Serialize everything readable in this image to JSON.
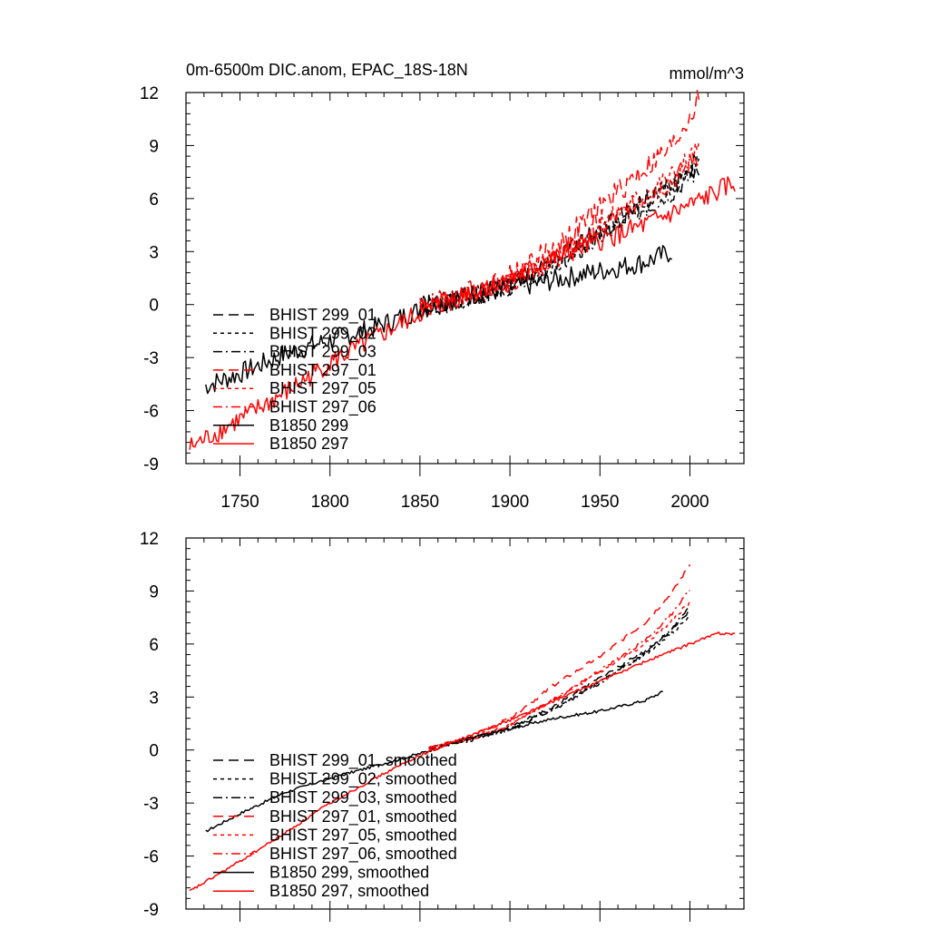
{
  "chart_data": [
    {
      "type": "line",
      "title": "0m-6500m DIC.anom, EPAC_18S-18N",
      "units_label": "mmol/m^3",
      "xlabel": "",
      "ylabel": "",
      "xlim": [
        1720,
        2030
      ],
      "ylim": [
        -9,
        12
      ],
      "xticks": [
        1750,
        1800,
        1850,
        1900,
        1950,
        2000
      ],
      "yticks": [
        -9,
        -6,
        -3,
        0,
        3,
        6,
        9,
        12
      ],
      "xtick_labels": [
        "1750",
        "1800",
        "1850",
        "1900",
        "1950",
        "2000"
      ],
      "ytick_labels": [
        "-9",
        "-6",
        "-3",
        "0",
        "3",
        "6",
        "9",
        "12"
      ],
      "grid": false,
      "legend_position": "lower-left",
      "series": [
        {
          "name": "BHIST 299_01",
          "color": "#000000",
          "dash": "long-dash",
          "noise": 0.6,
          "seed": 1,
          "points": [
            [
              1850,
              -0.1
            ],
            [
              1870,
              0.2
            ],
            [
              1900,
              1.2
            ],
            [
              1930,
              2.8
            ],
            [
              1950,
              4.3
            ],
            [
              1970,
              5.6
            ],
            [
              1990,
              6.8
            ],
            [
              2005,
              8.2
            ]
          ]
        },
        {
          "name": "BHIST 299_02",
          "color": "#000000",
          "dash": "short-dash",
          "noise": 0.6,
          "seed": 2,
          "points": [
            [
              1850,
              -0.1
            ],
            [
              1870,
              0.2
            ],
            [
              1900,
              1.1
            ],
            [
              1930,
              2.6
            ],
            [
              1950,
              4.0
            ],
            [
              1970,
              5.4
            ],
            [
              1990,
              6.7
            ],
            [
              2005,
              8.0
            ]
          ]
        },
        {
          "name": "BHIST 299_03",
          "color": "#000000",
          "dash": "dash-dot",
          "noise": 0.6,
          "seed": 3,
          "points": [
            [
              1850,
              -0.1
            ],
            [
              1870,
              0.2
            ],
            [
              1900,
              1.1
            ],
            [
              1930,
              2.5
            ],
            [
              1950,
              3.8
            ],
            [
              1970,
              5.2
            ],
            [
              1990,
              6.4
            ],
            [
              2005,
              7.7
            ]
          ]
        },
        {
          "name": "BHIST 297_01",
          "color": "#ff0000",
          "dash": "long-dash",
          "noise": 0.7,
          "seed": 4,
          "points": [
            [
              1850,
              -0.1
            ],
            [
              1870,
              0.4
            ],
            [
              1900,
              1.6
            ],
            [
              1930,
              3.6
            ],
            [
              1950,
              5.5
            ],
            [
              1970,
              7.3
            ],
            [
              1990,
              8.9
            ],
            [
              2005,
              11.6
            ]
          ]
        },
        {
          "name": "BHIST 297_05",
          "color": "#ff0000",
          "dash": "short-dash",
          "noise": 0.6,
          "seed": 5,
          "points": [
            [
              1850,
              -0.1
            ],
            [
              1870,
              0.3
            ],
            [
              1900,
              1.3
            ],
            [
              1930,
              3.0
            ],
            [
              1950,
              4.5
            ],
            [
              1970,
              5.9
            ],
            [
              1990,
              7.3
            ],
            [
              2005,
              8.8
            ]
          ]
        },
        {
          "name": "BHIST 297_06",
          "color": "#ff0000",
          "dash": "dash-dot",
          "noise": 0.6,
          "seed": 6,
          "points": [
            [
              1850,
              -0.1
            ],
            [
              1870,
              0.3
            ],
            [
              1900,
              1.3
            ],
            [
              1930,
              2.9
            ],
            [
              1950,
              4.3
            ],
            [
              1970,
              5.7
            ],
            [
              1990,
              7.0
            ],
            [
              2005,
              8.5
            ]
          ]
        },
        {
          "name": "B1850 299",
          "color": "#000000",
          "dash": "solid",
          "noise": 0.6,
          "seed": 7,
          "points": [
            [
              1731,
              -4.6
            ],
            [
              1750,
              -3.9
            ],
            [
              1775,
              -2.8
            ],
            [
              1800,
              -2.0
            ],
            [
              1825,
              -1.3
            ],
            [
              1850,
              -0.3
            ],
            [
              1875,
              0.5
            ],
            [
              1900,
              0.9
            ],
            [
              1925,
              1.4
            ],
            [
              1950,
              1.9
            ],
            [
              1975,
              2.4
            ],
            [
              1990,
              3.0
            ]
          ]
        },
        {
          "name": "B1850 297",
          "color": "#ff0000",
          "dash": "solid",
          "noise": 0.6,
          "seed": 8,
          "points": [
            [
              1722,
              -8.1
            ],
            [
              1750,
              -6.5
            ],
            [
              1775,
              -5.0
            ],
            [
              1800,
              -3.3
            ],
            [
              1825,
              -1.9
            ],
            [
              1850,
              -0.5
            ],
            [
              1875,
              0.6
            ],
            [
              1900,
              1.5
            ],
            [
              1925,
              2.6
            ],
            [
              1950,
              3.6
            ],
            [
              1975,
              4.5
            ],
            [
              2000,
              5.6
            ],
            [
              2025,
              6.9
            ]
          ]
        }
      ]
    },
    {
      "type": "line",
      "title": "",
      "xlabel": "",
      "ylabel": "",
      "xlim": [
        1720,
        2030
      ],
      "ylim": [
        -9,
        12
      ],
      "xticks": [
        1750,
        1800,
        1850,
        1900,
        1950,
        2000
      ],
      "yticks": [
        -9,
        -6,
        -3,
        0,
        3,
        6,
        9,
        12
      ],
      "ytick_labels": [
        "-9",
        "-6",
        "-3",
        "0",
        "3",
        "6",
        "9",
        "12"
      ],
      "grid": false,
      "legend_position": "lower-left",
      "series": [
        {
          "name": "BHIST 299_01, smoothed",
          "color": "#000000",
          "dash": "long-dash",
          "noise": 0.1,
          "seed": 11,
          "points": [
            [
              1855,
              0.1
            ],
            [
              1880,
              0.7
            ],
            [
              1900,
              1.3
            ],
            [
              1925,
              2.5
            ],
            [
              1950,
              4.1
            ],
            [
              1975,
              5.6
            ],
            [
              1990,
              6.8
            ],
            [
              2000,
              7.9
            ]
          ]
        },
        {
          "name": "BHIST 299_02, smoothed",
          "color": "#000000",
          "dash": "short-dash",
          "noise": 0.1,
          "seed": 12,
          "points": [
            [
              1855,
              0.1
            ],
            [
              1880,
              0.6
            ],
            [
              1900,
              1.2
            ],
            [
              1925,
              2.4
            ],
            [
              1950,
              3.9
            ],
            [
              1975,
              5.4
            ],
            [
              1990,
              6.6
            ],
            [
              2000,
              7.6
            ]
          ]
        },
        {
          "name": "BHIST 299_03, smoothed",
          "color": "#000000",
          "dash": "dash-dot",
          "noise": 0.1,
          "seed": 13,
          "points": [
            [
              1855,
              0.1
            ],
            [
              1880,
              0.6
            ],
            [
              1900,
              1.2
            ],
            [
              1925,
              2.3
            ],
            [
              1950,
              3.8
            ],
            [
              1975,
              5.5
            ],
            [
              1990,
              6.9
            ],
            [
              2000,
              8.2
            ]
          ]
        },
        {
          "name": "BHIST 297_01, smoothed",
          "color": "#ff0000",
          "dash": "long-dash",
          "noise": 0.1,
          "seed": 14,
          "points": [
            [
              1855,
              0.1
            ],
            [
              1880,
              0.8
            ],
            [
              1900,
              1.8
            ],
            [
              1925,
              3.7
            ],
            [
              1950,
              5.3
            ],
            [
              1975,
              7.2
            ],
            [
              1990,
              8.9
            ],
            [
              2000,
              10.5
            ]
          ]
        },
        {
          "name": "BHIST 297_05, smoothed",
          "color": "#ff0000",
          "dash": "short-dash",
          "noise": 0.1,
          "seed": 15,
          "points": [
            [
              1855,
              0.1
            ],
            [
              1880,
              0.7
            ],
            [
              1900,
              1.4
            ],
            [
              1925,
              2.9
            ],
            [
              1950,
              4.4
            ],
            [
              1975,
              6.0
            ],
            [
              1990,
              7.3
            ],
            [
              2000,
              8.4
            ]
          ]
        },
        {
          "name": "BHIST 297_06, smoothed",
          "color": "#ff0000",
          "dash": "dash-dot",
          "noise": 0.1,
          "seed": 16,
          "points": [
            [
              1855,
              0.1
            ],
            [
              1880,
              0.7
            ],
            [
              1900,
              1.4
            ],
            [
              1925,
              2.9
            ],
            [
              1950,
              4.5
            ],
            [
              1975,
              6.2
            ],
            [
              1990,
              7.7
            ],
            [
              2000,
              9.1
            ]
          ]
        },
        {
          "name": "B1850 299, smoothed",
          "color": "#000000",
          "dash": "solid",
          "noise": 0.08,
          "seed": 17,
          "points": [
            [
              1731,
              -4.6
            ],
            [
              1750,
              -3.6
            ],
            [
              1775,
              -2.4
            ],
            [
              1800,
              -1.6
            ],
            [
              1825,
              -0.9
            ],
            [
              1850,
              -0.2
            ],
            [
              1875,
              0.6
            ],
            [
              1900,
              1.2
            ],
            [
              1925,
              1.8
            ],
            [
              1950,
              2.2
            ],
            [
              1975,
              2.8
            ],
            [
              1985,
              3.3
            ]
          ]
        },
        {
          "name": "B1850 297, smoothed",
          "color": "#ff0000",
          "dash": "solid",
          "noise": 0.08,
          "seed": 18,
          "points": [
            [
              1722,
              -8.0
            ],
            [
              1750,
              -6.3
            ],
            [
              1775,
              -4.7
            ],
            [
              1800,
              -3.0
            ],
            [
              1825,
              -1.6
            ],
            [
              1850,
              -0.3
            ],
            [
              1875,
              0.7
            ],
            [
              1900,
              1.7
            ],
            [
              1925,
              2.8
            ],
            [
              1950,
              3.9
            ],
            [
              1975,
              5.0
            ],
            [
              2000,
              6.0
            ],
            [
              2015,
              6.6
            ],
            [
              2025,
              6.6
            ]
          ]
        }
      ]
    }
  ]
}
